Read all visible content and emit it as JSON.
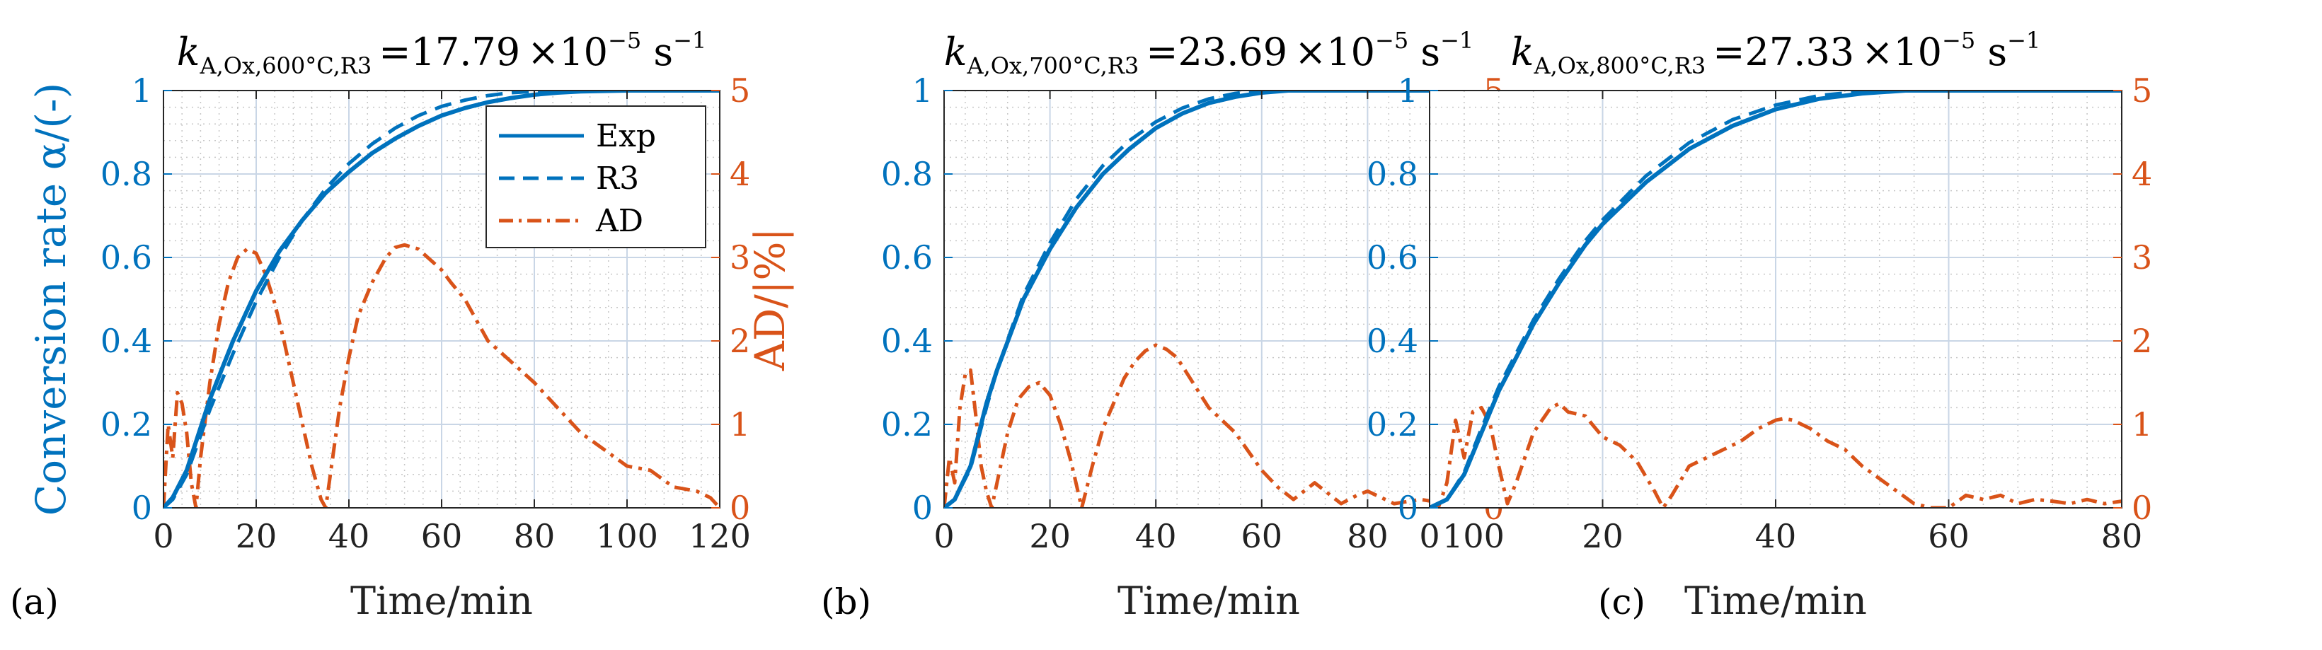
{
  "figure": {
    "colors": {
      "exp": "#0072BD",
      "r3": "#0072BD",
      "ad": "#D95319",
      "grid_major": "#c9d6e6",
      "grid_minor": "#c7c7c7"
    },
    "legend": {
      "entries": [
        "Exp",
        "R3",
        "AD"
      ],
      "placement": "inside top-right of panel (a)"
    }
  },
  "chart_data": [
    {
      "type": "line",
      "panel_label": "(a)",
      "title": {
        "symbol": "k",
        "subscript": "A,Ox,600°C,R3",
        "equals": "=",
        "value": "17.79",
        "times": "×10",
        "exponent": "−5",
        "unit": " s",
        "unit_exp": "−1"
      },
      "xlabel": "Time/min",
      "ylabel_left": "Conversion rate α/(-)",
      "ylabel_right": "AD/|%|",
      "xlim": [
        0,
        120
      ],
      "ylim_left": [
        0,
        1
      ],
      "ylim_right": [
        0,
        5
      ],
      "xticks": [
        "0",
        "20",
        "40",
        "60",
        "80",
        "100",
        "120"
      ],
      "yticks_left": [
        "0",
        "0.2",
        "0.4",
        "0.6",
        "0.8",
        "1"
      ],
      "yticks_right": [
        "0",
        "1",
        "2",
        "3",
        "4",
        "5"
      ],
      "series": [
        {
          "name": "Exp",
          "axis": "left",
          "style": "solid",
          "x": [
            0,
            2,
            5,
            10,
            15,
            20,
            25,
            30,
            35,
            40,
            45,
            50,
            55,
            60,
            65,
            70,
            75,
            80,
            85,
            90,
            95,
            100,
            105,
            110,
            120
          ],
          "y": [
            0,
            0.025,
            0.09,
            0.26,
            0.4,
            0.52,
            0.615,
            0.69,
            0.755,
            0.805,
            0.85,
            0.885,
            0.915,
            0.94,
            0.958,
            0.972,
            0.982,
            0.99,
            0.995,
            0.998,
            0.999,
            1,
            1,
            1,
            1
          ]
        },
        {
          "name": "R3",
          "axis": "left",
          "style": "dashed",
          "x": [
            0,
            2,
            5,
            10,
            15,
            20,
            25,
            30,
            35,
            40,
            45,
            50,
            55,
            60,
            65,
            70,
            75,
            80,
            85,
            90,
            95,
            100,
            120
          ],
          "y": [
            0,
            0.02,
            0.08,
            0.235,
            0.37,
            0.495,
            0.6,
            0.69,
            0.765,
            0.825,
            0.872,
            0.91,
            0.94,
            0.962,
            0.977,
            0.988,
            0.995,
            0.998,
            1,
            1,
            1,
            1,
            1
          ]
        },
        {
          "name": "AD",
          "axis": "right",
          "style": "dashdot",
          "x": [
            0,
            1,
            2,
            3,
            4,
            5,
            6,
            7,
            8,
            10,
            12,
            14,
            16,
            18,
            20,
            22,
            24,
            26,
            28,
            30,
            32,
            34,
            35,
            36,
            38,
            40,
            42,
            45,
            48,
            50,
            52,
            55,
            58,
            60,
            62,
            65,
            68,
            70,
            75,
            80,
            85,
            90,
            95,
            100,
            105,
            110,
            115,
            118,
            120
          ],
          "y": [
            0,
            1.0,
            0.6,
            1.38,
            1.25,
            0.9,
            0.3,
            0,
            0.6,
            1.5,
            2.2,
            2.7,
            3.0,
            3.1,
            3.05,
            2.8,
            2.45,
            2.0,
            1.5,
            1.0,
            0.5,
            0.1,
            0,
            0.4,
            1.2,
            1.8,
            2.3,
            2.7,
            3.0,
            3.12,
            3.15,
            3.1,
            2.95,
            2.85,
            2.7,
            2.5,
            2.2,
            2.0,
            1.75,
            1.5,
            1.2,
            0.9,
            0.7,
            0.5,
            0.45,
            0.25,
            0.2,
            0.12,
            0
          ]
        }
      ]
    },
    {
      "type": "line",
      "panel_label": "(b)",
      "title": {
        "symbol": "k",
        "subscript": "A,Ox,700°C,R3",
        "equals": "=",
        "value": "23.69",
        "times": "×10",
        "exponent": "−5",
        "unit": " s",
        "unit_exp": "−1"
      },
      "xlabel": "Time/min",
      "ylabel_left": "",
      "ylabel_right": "",
      "xlim": [
        0,
        100
      ],
      "ylim_left": [
        0,
        1
      ],
      "ylim_right": [
        0,
        5
      ],
      "xticks": [
        "0",
        "20",
        "40",
        "60",
        "80",
        "100"
      ],
      "yticks_left": [
        "0",
        "0.2",
        "0.4",
        "0.6",
        "0.8",
        "1"
      ],
      "yticks_right": [
        "0",
        "1",
        "2",
        "3",
        "4",
        "5"
      ],
      "series": [
        {
          "name": "Exp",
          "axis": "left",
          "style": "solid",
          "x": [
            0,
            2,
            5,
            8,
            10,
            15,
            20,
            25,
            30,
            35,
            40,
            45,
            50,
            55,
            60,
            65,
            70,
            80,
            100
          ],
          "y": [
            0,
            0.02,
            0.1,
            0.25,
            0.33,
            0.5,
            0.62,
            0.72,
            0.8,
            0.86,
            0.91,
            0.945,
            0.97,
            0.985,
            0.995,
            1,
            1,
            1,
            1
          ]
        },
        {
          "name": "R3",
          "axis": "left",
          "style": "dashed",
          "x": [
            0,
            2,
            5,
            8,
            10,
            15,
            20,
            25,
            30,
            35,
            40,
            45,
            50,
            55,
            60,
            65,
            70,
            80,
            100
          ],
          "y": [
            0,
            0.02,
            0.095,
            0.24,
            0.33,
            0.51,
            0.635,
            0.74,
            0.82,
            0.88,
            0.925,
            0.958,
            0.98,
            0.993,
            1,
            1,
            1,
            1,
            1
          ]
        },
        {
          "name": "AD",
          "axis": "right",
          "style": "dashdot",
          "x": [
            0,
            1,
            2,
            3,
            4,
            5,
            6,
            7,
            8,
            9,
            10,
            12,
            14,
            16,
            18,
            20,
            22,
            24,
            26,
            28,
            30,
            32,
            34,
            36,
            38,
            40,
            42,
            44,
            46,
            48,
            50,
            55,
            60,
            63,
            66,
            68,
            70,
            72,
            75,
            78,
            80,
            85,
            90,
            95,
            100
          ],
          "y": [
            0,
            0.6,
            0.3,
            1.2,
            1.6,
            1.65,
            1.1,
            0.5,
            0.2,
            0,
            0.3,
            0.9,
            1.3,
            1.45,
            1.5,
            1.35,
            1.0,
            0.55,
            0,
            0.5,
            0.95,
            1.25,
            1.55,
            1.75,
            1.88,
            1.95,
            1.9,
            1.8,
            1.6,
            1.4,
            1.2,
            0.9,
            0.45,
            0.25,
            0.1,
            0.2,
            0.3,
            0.2,
            0.05,
            0.15,
            0.2,
            0.05,
            0.1,
            0.05,
            0
          ]
        }
      ]
    },
    {
      "type": "line",
      "panel_label": "(c)",
      "title": {
        "symbol": "k",
        "subscript": "A,Ox,800°C,R3",
        "equals": "=",
        "value": "27.33",
        "times": "×10",
        "exponent": "−5",
        "unit": " s",
        "unit_exp": "−1"
      },
      "xlabel": "Time/min",
      "ylabel_left": "",
      "ylabel_right": "",
      "xlim": [
        0,
        80
      ],
      "ylim_left": [
        0,
        1
      ],
      "ylim_right": [
        0,
        5
      ],
      "xticks": [
        "0",
        "20",
        "40",
        "60",
        "80"
      ],
      "yticks_left": [
        "0",
        "0.2",
        "0.4",
        "0.6",
        "0.8",
        "1"
      ],
      "yticks_right": [
        "0",
        "1",
        "2",
        "3",
        "4",
        "5"
      ],
      "series": [
        {
          "name": "Exp",
          "axis": "left",
          "style": "solid",
          "x": [
            0,
            2,
            4,
            6,
            8,
            10,
            12,
            15,
            18,
            20,
            25,
            30,
            35,
            40,
            45,
            50,
            55,
            60,
            70,
            80
          ],
          "y": [
            0,
            0.02,
            0.08,
            0.18,
            0.28,
            0.36,
            0.44,
            0.54,
            0.63,
            0.68,
            0.78,
            0.86,
            0.915,
            0.955,
            0.98,
            0.993,
            1,
            1,
            1,
            1
          ]
        },
        {
          "name": "R3",
          "axis": "left",
          "style": "dashed",
          "x": [
            0,
            2,
            4,
            6,
            8,
            10,
            12,
            15,
            18,
            20,
            25,
            30,
            35,
            40,
            45,
            50,
            55,
            60,
            70,
            80
          ],
          "y": [
            0,
            0.02,
            0.085,
            0.19,
            0.29,
            0.37,
            0.45,
            0.55,
            0.64,
            0.69,
            0.795,
            0.875,
            0.93,
            0.965,
            0.988,
            0.998,
            1,
            1,
            1,
            1
          ]
        },
        {
          "name": "AD",
          "axis": "right",
          "style": "dashdot",
          "x": [
            0,
            1,
            2,
            3,
            4,
            5,
            6,
            7,
            8,
            9,
            10,
            12,
            14,
            15,
            16,
            18,
            20,
            22,
            24,
            26,
            27,
            28,
            30,
            32,
            34,
            36,
            38,
            40,
            41,
            42,
            44,
            46,
            48,
            50,
            52,
            54,
            56,
            58,
            60,
            62,
            64,
            66,
            68,
            70,
            72,
            74,
            76,
            78,
            80
          ],
          "y": [
            0,
            0,
            0.3,
            1.05,
            0.6,
            1.15,
            1.2,
            1.0,
            0.5,
            0.05,
            0.3,
            0.9,
            1.2,
            1.25,
            1.15,
            1.1,
            0.85,
            0.75,
            0.55,
            0.2,
            0,
            0.15,
            0.5,
            0.6,
            0.7,
            0.8,
            0.95,
            1.05,
            1.07,
            1.05,
            0.95,
            0.8,
            0.7,
            0.5,
            0.35,
            0.2,
            0.05,
            0,
            0,
            0.15,
            0.1,
            0.15,
            0.05,
            0.1,
            0.08,
            0.05,
            0.1,
            0.05,
            0.08
          ]
        }
      ]
    }
  ]
}
